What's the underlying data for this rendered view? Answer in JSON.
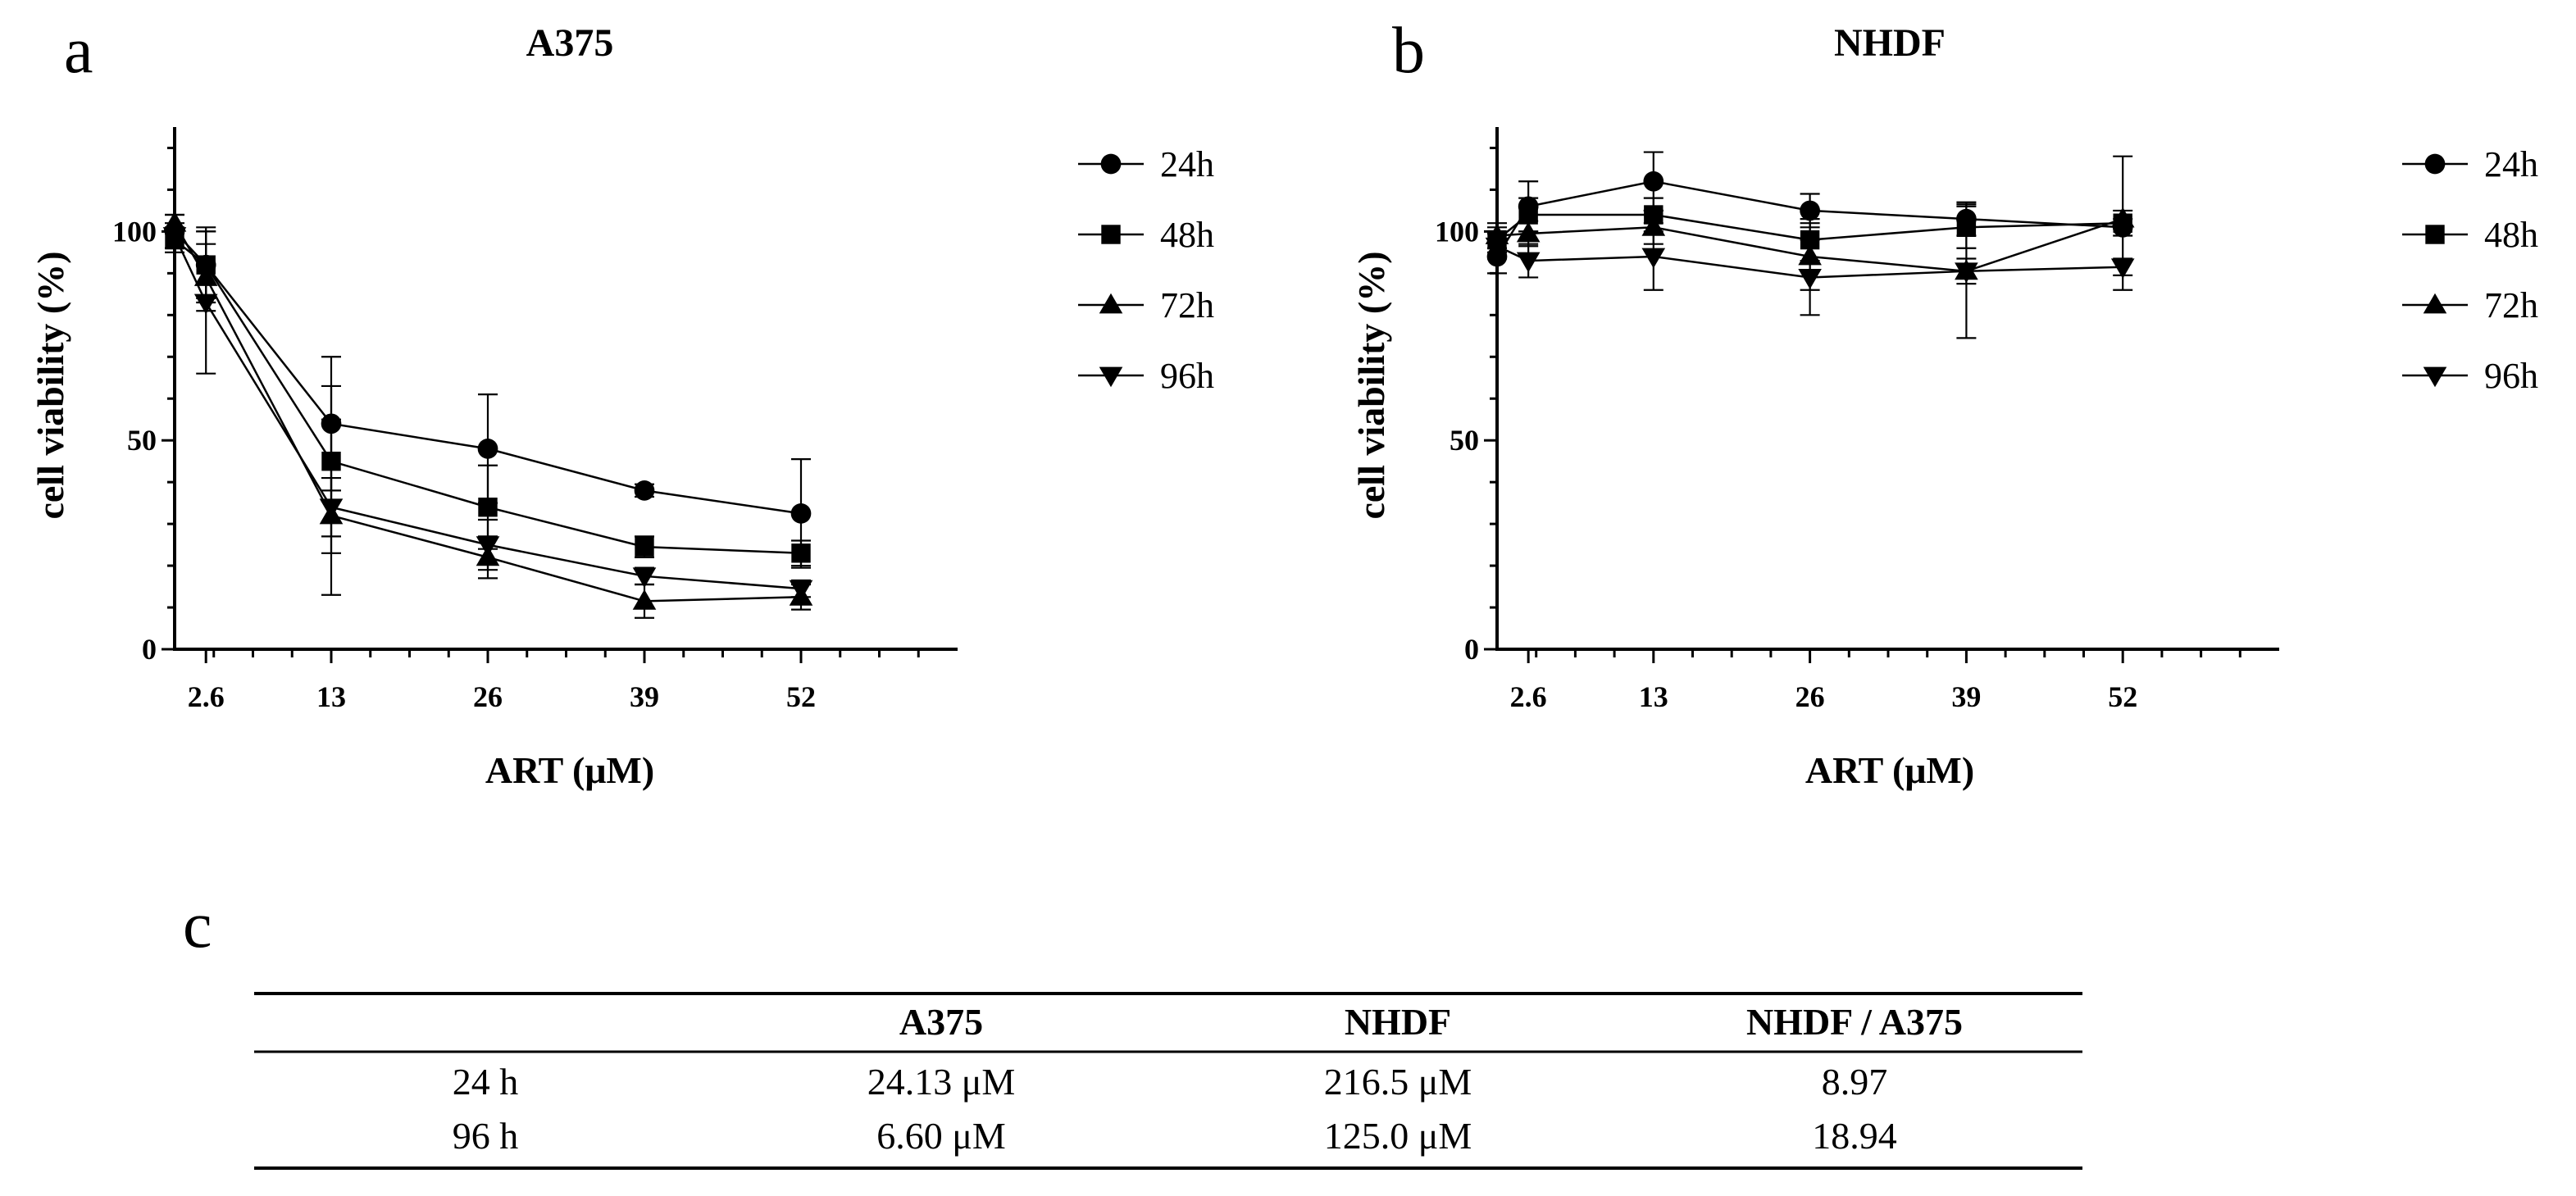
{
  "chart_data": [
    {
      "panel": "a",
      "type": "line",
      "title": "A375",
      "xlabel": "ART (μM)",
      "ylabel": "cell viability (%)",
      "x": [
        0,
        2.6,
        13,
        26,
        39,
        52
      ],
      "xticks": [
        2.6,
        13,
        26,
        39,
        52
      ],
      "yticks": [
        0,
        50,
        100
      ],
      "xlim": [
        0,
        65
      ],
      "ylim": [
        0,
        125
      ],
      "series": [
        {
          "name": "24h",
          "marker": "circle",
          "values": [
            100,
            92,
            54,
            48,
            38,
            32.5
          ],
          "errors": [
            4,
            8,
            16,
            13,
            1.5,
            13
          ]
        },
        {
          "name": "48h",
          "marker": "square",
          "values": [
            98,
            92,
            45,
            34,
            24.5,
            23
          ],
          "errors": [
            3,
            9,
            18,
            10,
            2.5,
            3
          ]
        },
        {
          "name": "72h",
          "marker": "triangle-up",
          "values": [
            102,
            89,
            32,
            22,
            11.5,
            12.5
          ],
          "errors": [
            2,
            8,
            9,
            5,
            4,
            3
          ]
        },
        {
          "name": "96h",
          "marker": "triangle-down",
          "values": [
            99,
            83,
            34,
            25,
            17.5,
            14.5
          ],
          "errors": [
            3,
            17,
            21,
            6,
            2,
            2
          ]
        }
      ]
    },
    {
      "panel": "b",
      "type": "line",
      "title": "NHDF",
      "xlabel": "ART (μM)",
      "ylabel": "cell viability (%)",
      "x": [
        0,
        2.6,
        13,
        26,
        39,
        52
      ],
      "xticks": [
        2.6,
        13,
        26,
        39,
        52
      ],
      "yticks": [
        0,
        50,
        100
      ],
      "xlim": [
        0,
        65
      ],
      "ylim": [
        0,
        125
      ],
      "series": [
        {
          "name": "24h",
          "marker": "circle",
          "values": [
            94,
            106,
            112,
            105,
            103,
            101
          ],
          "errors": [
            4,
            6,
            7,
            4,
            4,
            2
          ]
        },
        {
          "name": "48h",
          "marker": "square",
          "values": [
            98,
            104,
            104,
            98,
            101,
            102
          ],
          "errors": [
            3,
            4,
            4,
            5,
            5,
            16
          ]
        },
        {
          "name": "72h",
          "marker": "triangle-up",
          "values": [
            99,
            99.5,
            101,
            94,
            90.5,
            103
          ],
          "errors": [
            3,
            3,
            4,
            8,
            16,
            2
          ]
        },
        {
          "name": "96h",
          "marker": "triangle-down",
          "values": [
            96.5,
            93,
            94,
            89,
            90.5,
            91.5
          ],
          "errors": [
            3,
            4,
            8,
            9,
            3,
            2
          ]
        }
      ]
    }
  ],
  "panel_c": {
    "letter": "c",
    "headers": [
      "",
      "A375",
      "NHDF",
      "NHDF / A375"
    ],
    "rows": [
      [
        "24 h",
        "24.13 μM",
        "216.5 μM",
        "8.97"
      ],
      [
        "96 h",
        "6.60 μM",
        "125.0 μM",
        "18.94"
      ]
    ]
  }
}
